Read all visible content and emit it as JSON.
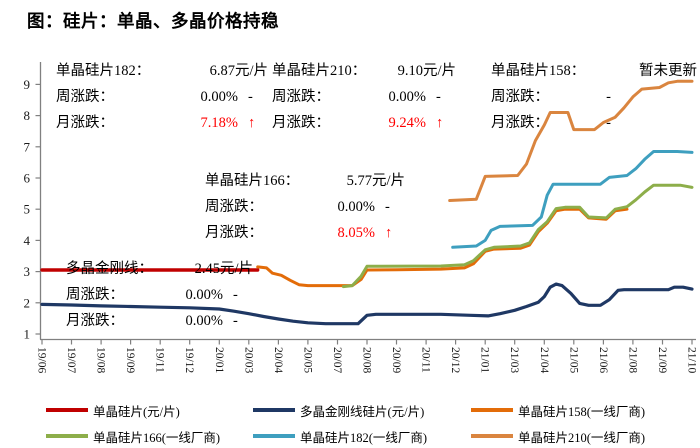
{
  "title": "图：硅片：单晶、多晶价格持稳",
  "annotations": {
    "a182": {
      "name": "单晶硅片182：",
      "value": "6.87元/片",
      "week_label": "周涨跌：",
      "week_value": "0.00%",
      "week_dir": "-",
      "month_label": "月涨跌：",
      "month_value": "7.18%",
      "month_dir": "↑"
    },
    "a210": {
      "name": "单晶硅片210：",
      "value": "9.10元/片",
      "week_label": "周涨跌：",
      "week_value": "0.00%",
      "week_dir": "-",
      "month_label": "月涨跌：",
      "month_value": "9.24%",
      "month_dir": "↑"
    },
    "a158": {
      "name": "单晶硅片158：",
      "value": "暂未更新",
      "week_label": "周涨跌：",
      "week_value": "-",
      "week_dir": "",
      "month_label": "月涨跌：",
      "month_value": "-",
      "month_dir": ""
    },
    "a166": {
      "name": "单晶硅片166：",
      "value": "5.77元/片",
      "week_label": "周涨跌：",
      "week_value": "0.00%",
      "week_dir": "-",
      "month_label": "月涨跌：",
      "month_value": "8.05%",
      "month_dir": "↑"
    },
    "poly": {
      "name": "多晶金刚线：",
      "value": "2.45元/片",
      "week_label": "周涨跌：",
      "week_value": "0.00%",
      "week_dir": "-",
      "month_label": "月涨跌：",
      "month_value": "0.00%",
      "month_dir": "-"
    }
  },
  "legend": {
    "items": [
      {
        "label": "单晶硅片(元/片)",
        "color": "#C00000"
      },
      {
        "label": "多晶金刚线硅片(元/片)",
        "color": "#1F3864"
      },
      {
        "label": "单晶硅片158(一线厂商)",
        "color": "#E36C09"
      },
      {
        "label": "单晶硅片166(一线厂商)",
        "color": "#8DAE4A"
      },
      {
        "label": "单晶硅片182(一线厂商)",
        "color": "#3E9FBF"
      },
      {
        "label": "单晶硅片210(一线厂商)",
        "color": "#DA853F"
      }
    ]
  },
  "chart_data": {
    "type": "line",
    "ylim": [
      1,
      9
    ],
    "yticks": [
      1,
      2,
      3,
      4,
      5,
      6,
      7,
      8,
      9
    ],
    "axis_color": "#808080",
    "x_tick_labels": [
      "19/06",
      "19/07",
      "19/08",
      "19/09",
      "19/11",
      "19/12",
      "20/01",
      "20/03",
      "20/04",
      "20/05",
      "20/07",
      "20/08",
      "20/09",
      "20/11",
      "20/12",
      "21/01",
      "21/03",
      "21/04",
      "21/05",
      "21/06",
      "21/08",
      "21/09",
      "21/10"
    ],
    "x_note": "x values below are in tick-index units, 0 = 19/06 … 22 = 21/10",
    "legend_position": "bottom",
    "grid": false,
    "series": [
      {
        "name": "单晶硅片(元/片)",
        "color": "#C00000",
        "stroke": 3.4,
        "points": [
          [
            0,
            3.05
          ],
          [
            7.3,
            3.05
          ]
        ]
      },
      {
        "name": "多晶金刚线硅片(元/片)",
        "color": "#1F3864",
        "stroke": 3.2,
        "points": [
          [
            0,
            1.95
          ],
          [
            1,
            1.93
          ],
          [
            2,
            1.9
          ],
          [
            3,
            1.88
          ],
          [
            4,
            1.86
          ],
          [
            5,
            1.84
          ],
          [
            6,
            1.8
          ],
          [
            6.5,
            1.73
          ],
          [
            7,
            1.65
          ],
          [
            7.5,
            1.56
          ],
          [
            8,
            1.48
          ],
          [
            8.5,
            1.41
          ],
          [
            9,
            1.36
          ],
          [
            9.6,
            1.33
          ],
          [
            10.7,
            1.33
          ],
          [
            11,
            1.6
          ],
          [
            11.3,
            1.63
          ],
          [
            13.5,
            1.63
          ],
          [
            14.5,
            1.6
          ],
          [
            15.1,
            1.58
          ],
          [
            15.5,
            1.65
          ],
          [
            16,
            1.76
          ],
          [
            16.4,
            1.88
          ],
          [
            16.8,
            2.02
          ],
          [
            17,
            2.2
          ],
          [
            17.2,
            2.5
          ],
          [
            17.4,
            2.6
          ],
          [
            17.6,
            2.55
          ],
          [
            17.9,
            2.3
          ],
          [
            18.2,
            1.98
          ],
          [
            18.5,
            1.92
          ],
          [
            18.9,
            1.92
          ],
          [
            19.2,
            2.1
          ],
          [
            19.5,
            2.4
          ],
          [
            19.7,
            2.42
          ],
          [
            21.2,
            2.42
          ],
          [
            21.4,
            2.5
          ],
          [
            21.7,
            2.5
          ],
          [
            22,
            2.44
          ]
        ]
      },
      {
        "name": "单晶硅片158(一线厂商)",
        "color": "#E36C09",
        "stroke": 3,
        "points": [
          [
            7.3,
            3.15
          ],
          [
            7.6,
            3.12
          ],
          [
            7.8,
            2.95
          ],
          [
            8.1,
            2.88
          ],
          [
            8.4,
            2.72
          ],
          [
            8.7,
            2.58
          ],
          [
            9,
            2.55
          ],
          [
            10.5,
            2.55
          ],
          [
            10.8,
            2.75
          ],
          [
            11,
            3.05
          ],
          [
            12,
            3.06
          ],
          [
            13.5,
            3.08
          ],
          [
            14.3,
            3.12
          ],
          [
            14.6,
            3.25
          ],
          [
            15,
            3.65
          ],
          [
            15.3,
            3.72
          ],
          [
            16.2,
            3.75
          ],
          [
            16.5,
            3.85
          ],
          [
            16.8,
            4.28
          ],
          [
            17.1,
            4.55
          ],
          [
            17.4,
            4.95
          ],
          [
            17.7,
            5.0
          ],
          [
            18.2,
            5.0
          ],
          [
            18.5,
            4.72
          ],
          [
            19.1,
            4.68
          ],
          [
            19.4,
            4.95
          ],
          [
            19.8,
            5.0
          ]
        ]
      },
      {
        "name": "单晶硅片166(一线厂商)",
        "color": "#8DAE4A",
        "stroke": 3,
        "points": [
          [
            10.2,
            2.52
          ],
          [
            10.5,
            2.55
          ],
          [
            10.8,
            2.85
          ],
          [
            11,
            3.17
          ],
          [
            13.5,
            3.18
          ],
          [
            14.3,
            3.22
          ],
          [
            14.6,
            3.35
          ],
          [
            15,
            3.7
          ],
          [
            15.3,
            3.78
          ],
          [
            16.2,
            3.82
          ],
          [
            16.5,
            3.92
          ],
          [
            16.8,
            4.35
          ],
          [
            17.1,
            4.6
          ],
          [
            17.4,
            5.02
          ],
          [
            17.7,
            5.06
          ],
          [
            18.2,
            5.06
          ],
          [
            18.5,
            4.75
          ],
          [
            19.1,
            4.72
          ],
          [
            19.4,
            5.0
          ],
          [
            19.8,
            5.08
          ],
          [
            20.1,
            5.3
          ],
          [
            20.4,
            5.55
          ],
          [
            20.7,
            5.77
          ],
          [
            21.6,
            5.77
          ],
          [
            22,
            5.7
          ]
        ]
      },
      {
        "name": "单晶硅片182(一线厂商)",
        "color": "#3E9FBF",
        "stroke": 3,
        "points": [
          [
            13.9,
            3.78
          ],
          [
            14.7,
            3.82
          ],
          [
            15,
            4.0
          ],
          [
            15.2,
            4.32
          ],
          [
            15.5,
            4.45
          ],
          [
            16.6,
            4.48
          ],
          [
            16.9,
            4.75
          ],
          [
            17.1,
            5.45
          ],
          [
            17.3,
            5.8
          ],
          [
            18.9,
            5.8
          ],
          [
            19.2,
            6.02
          ],
          [
            19.8,
            6.08
          ],
          [
            20.1,
            6.3
          ],
          [
            20.4,
            6.6
          ],
          [
            20.7,
            6.85
          ],
          [
            21.5,
            6.85
          ],
          [
            22,
            6.82
          ]
        ]
      },
      {
        "name": "单晶硅片210(一线厂商)",
        "color": "#DA853F",
        "stroke": 3,
        "points": [
          [
            13.8,
            5.28
          ],
          [
            14.7,
            5.32
          ],
          [
            15,
            6.05
          ],
          [
            16.1,
            6.08
          ],
          [
            16.4,
            6.45
          ],
          [
            16.7,
            7.2
          ],
          [
            17,
            7.7
          ],
          [
            17.2,
            8.1
          ],
          [
            17.8,
            8.1
          ],
          [
            18,
            7.55
          ],
          [
            18.7,
            7.55
          ],
          [
            19,
            7.78
          ],
          [
            19.4,
            7.95
          ],
          [
            19.7,
            8.25
          ],
          [
            20,
            8.6
          ],
          [
            20.3,
            8.85
          ],
          [
            20.9,
            8.9
          ],
          [
            21.2,
            9.05
          ],
          [
            21.5,
            9.1
          ],
          [
            22,
            9.1
          ]
        ]
      }
    ]
  }
}
